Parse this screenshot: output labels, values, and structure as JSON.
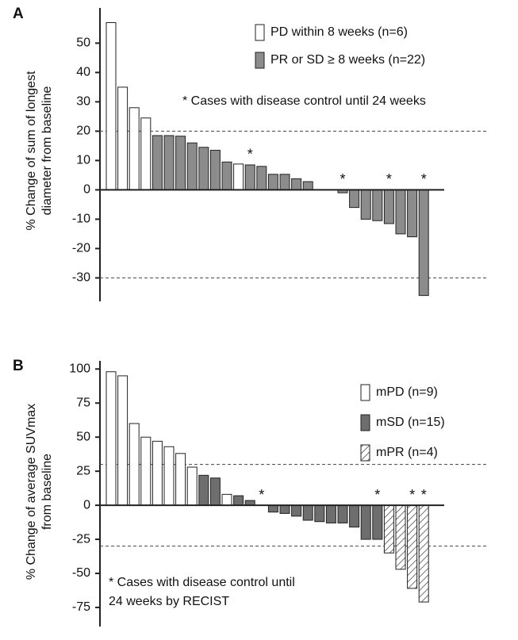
{
  "chart_data": [
    {
      "type": "waterfall",
      "panel": "A",
      "y_label": [
        "% Change of sum of longest",
        "diameter from baseline"
      ],
      "annotation": [
        "* Cases with disease control until 24 weeks"
      ],
      "ylim": [
        -38,
        62
      ],
      "yticks": [
        -30,
        -20,
        -10,
        0,
        10,
        20,
        30,
        40,
        50
      ],
      "reference_lines": [
        20,
        -30
      ],
      "markers": [
        null,
        null,
        null,
        null,
        null,
        null,
        null,
        null,
        null,
        null,
        null,
        null,
        "*",
        null,
        null,
        null,
        null,
        null,
        null,
        null,
        "*",
        null,
        null,
        null,
        "*",
        null,
        null,
        "*"
      ],
      "series": [
        {
          "name": "PD within 8 weeks (n=6)",
          "color": "#ffffff",
          "values": [
            57,
            35,
            28,
            24.5,
            null,
            null,
            null,
            null,
            null,
            null,
            null,
            8.8,
            null,
            null,
            null,
            null,
            null,
            null,
            0,
            null,
            null,
            null,
            null,
            null,
            null,
            null,
            null,
            null
          ]
        },
        {
          "name": "PR or SD ≥ 8 weeks (n=22)",
          "color": "#8c8c8c",
          "values": [
            null,
            null,
            null,
            null,
            18.5,
            18.5,
            18.3,
            16,
            14.5,
            13.5,
            9.5,
            null,
            8.5,
            8,
            5.3,
            5.3,
            3.8,
            2.8,
            null,
            0,
            -1,
            -6,
            -10,
            -10.5,
            -11.5,
            -15,
            -16,
            -36
          ]
        }
      ]
    },
    {
      "type": "waterfall",
      "panel": "B",
      "y_label": [
        "% Change of average SUVmax",
        "from baseline"
      ],
      "annotation": [
        "* Cases with disease control until",
        "24 weeks by RECIST"
      ],
      "ylim": [
        -89,
        106
      ],
      "yticks": [
        -75,
        -50,
        -25,
        0,
        25,
        50,
        75,
        100
      ],
      "reference_lines": [
        30,
        -30
      ],
      "markers": [
        null,
        null,
        null,
        null,
        null,
        null,
        null,
        null,
        null,
        null,
        null,
        null,
        null,
        "*",
        null,
        null,
        null,
        null,
        null,
        null,
        null,
        null,
        null,
        "*",
        null,
        null,
        "*",
        "*"
      ],
      "series": [
        {
          "name": "mPD (n=9)",
          "color": "#ffffff",
          "values": [
            98,
            95,
            60,
            50,
            47,
            43,
            38,
            28,
            null,
            null,
            8,
            null,
            null,
            null,
            null,
            null,
            null,
            null,
            null,
            null,
            null,
            null,
            null,
            null,
            null,
            null,
            null,
            null
          ]
        },
        {
          "name": "mSD (n=15)",
          "color": "#6e6e6e",
          "values": [
            null,
            null,
            null,
            null,
            null,
            null,
            null,
            null,
            22,
            20,
            null,
            7,
            3.5,
            0,
            -5,
            -6,
            -8,
            -11,
            -12,
            -13,
            -13,
            -16,
            -25,
            -25,
            null,
            null,
            null,
            null
          ]
        },
        {
          "name": "mPR (n=4)",
          "color": "#ffffff",
          "pattern": "hatch",
          "values": [
            null,
            null,
            null,
            null,
            null,
            null,
            null,
            null,
            null,
            null,
            null,
            null,
            null,
            null,
            null,
            null,
            null,
            null,
            null,
            null,
            null,
            null,
            null,
            null,
            -35,
            -47,
            -61,
            -71
          ]
        }
      ]
    }
  ]
}
